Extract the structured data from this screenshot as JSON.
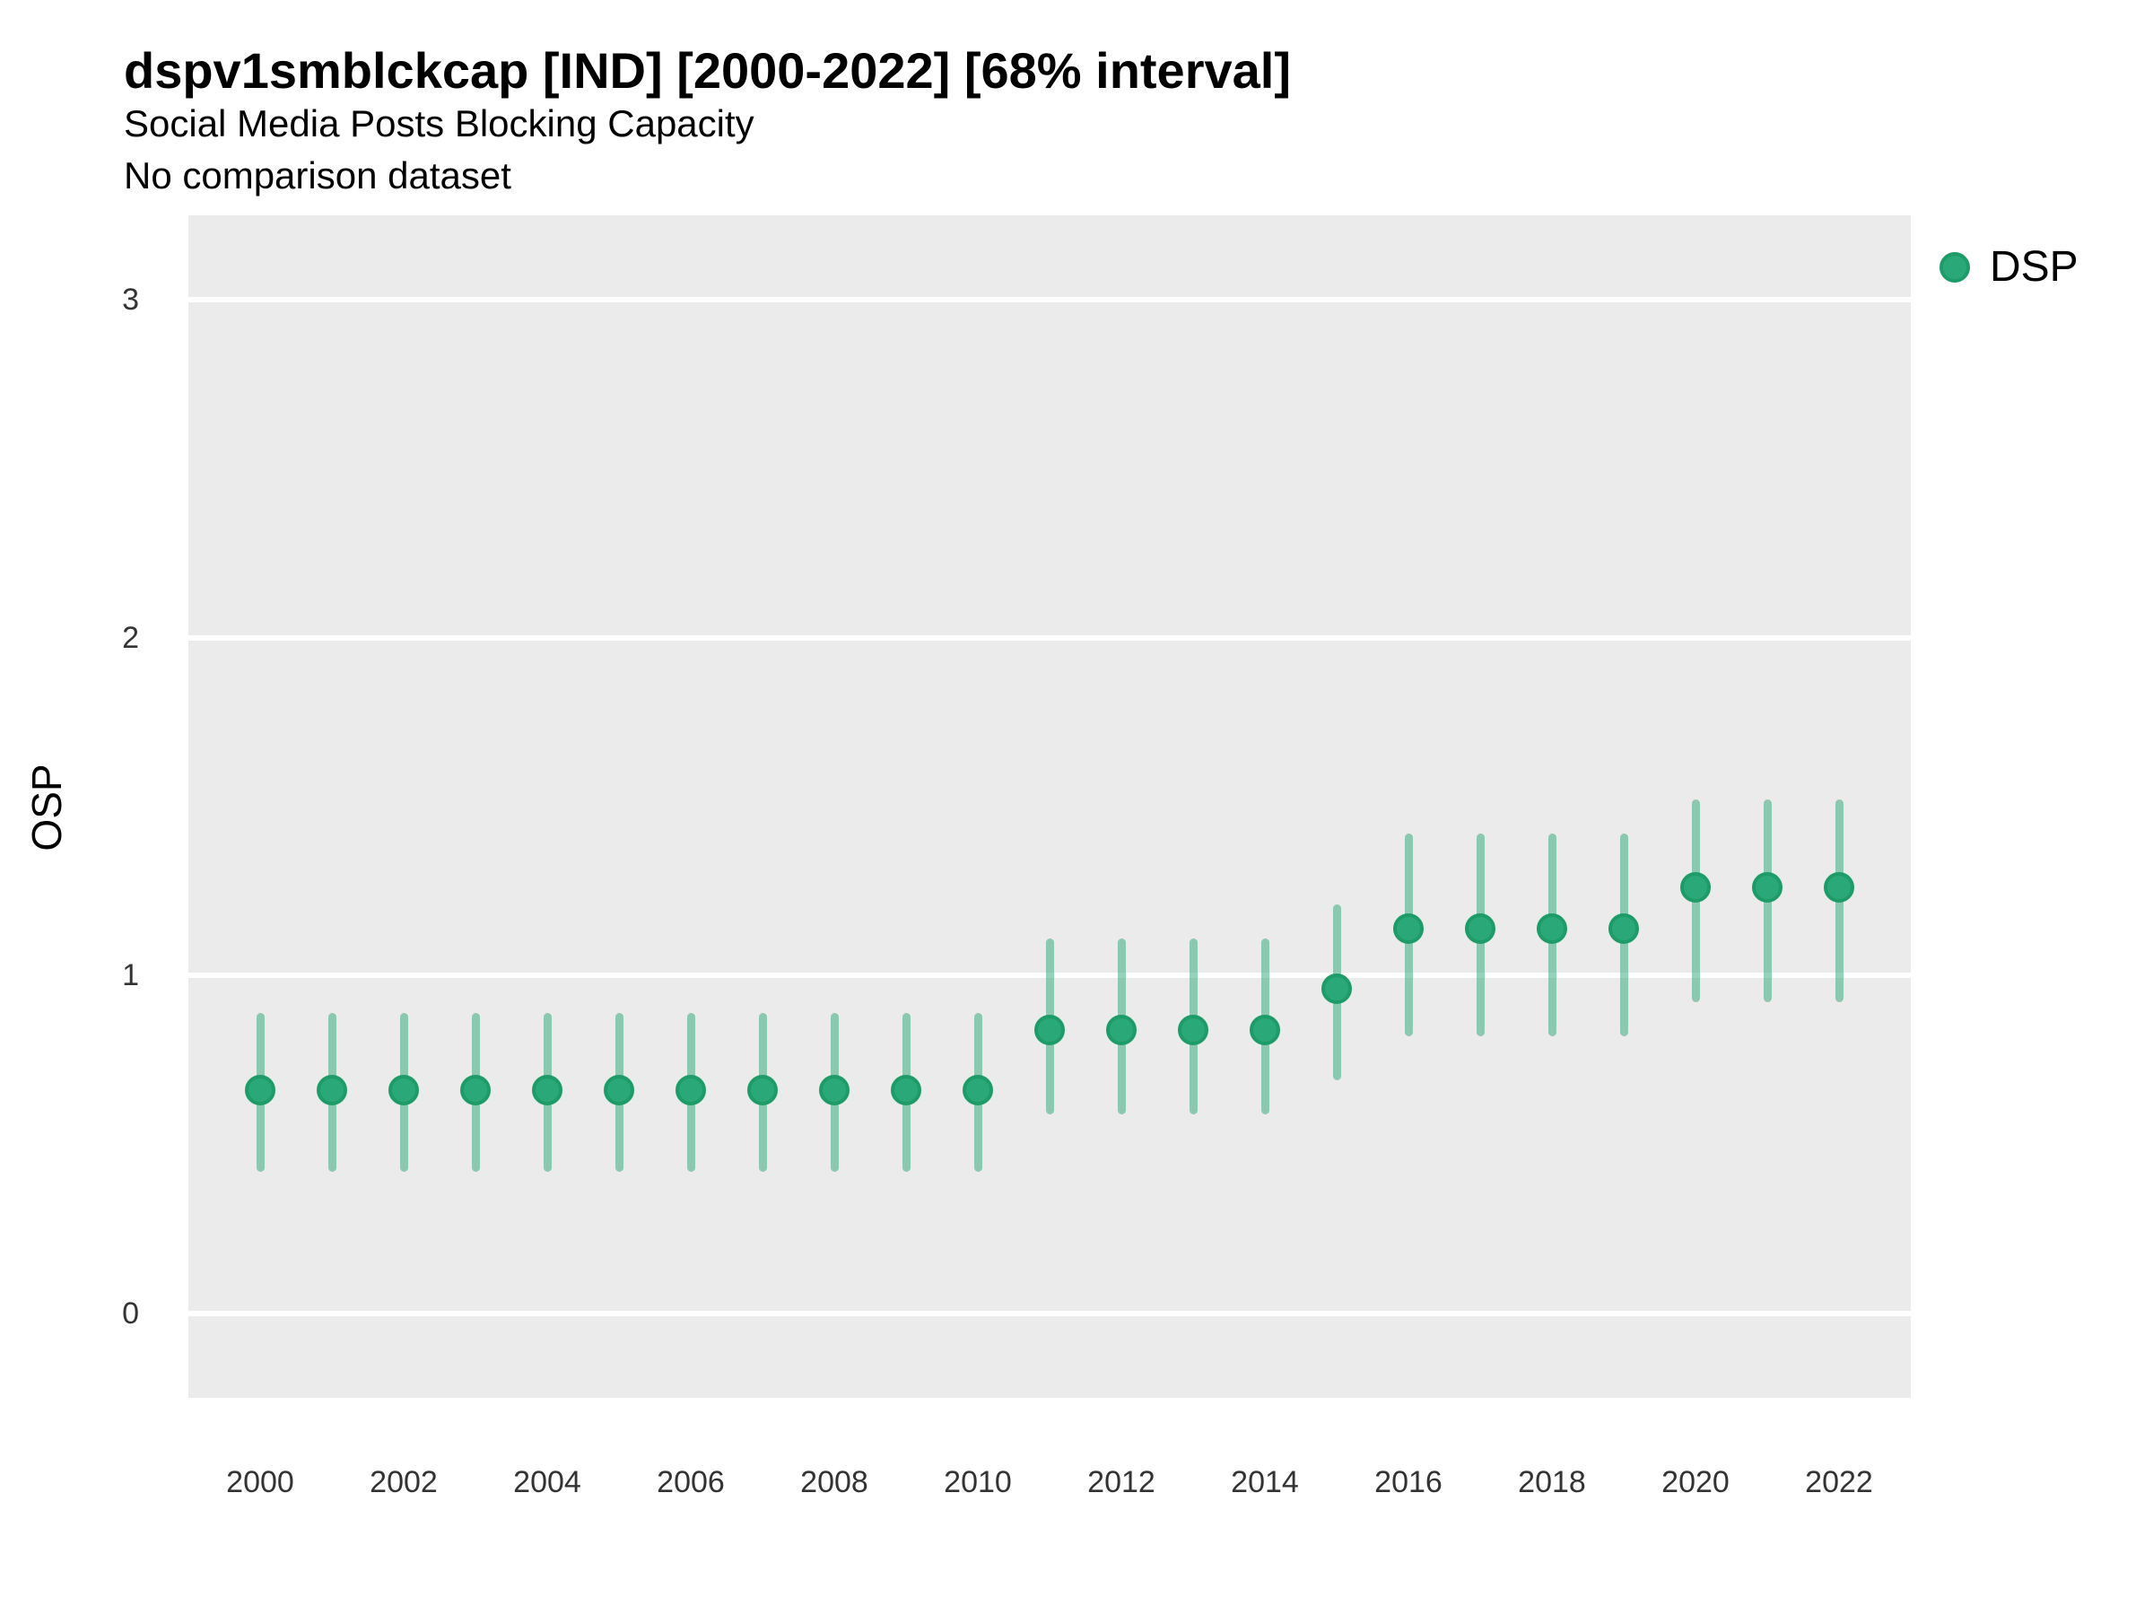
{
  "header": {
    "title": "dspv1smblckcap [IND] [2000-2022] [68% interval]",
    "subtitle": "Social Media Posts Blocking Capacity",
    "caption": "No comparison dataset"
  },
  "legend": {
    "label": "DSP"
  },
  "axes": {
    "ylabel": "OSP",
    "yticks": [
      0,
      1,
      2,
      3
    ],
    "xticks": [
      2000,
      2002,
      2004,
      2006,
      2008,
      2010,
      2012,
      2014,
      2016,
      2018,
      2020,
      2022
    ]
  },
  "colors": {
    "point_fill": "#2BA878",
    "point_border": "#1E9C68",
    "interval_bar": "rgba(42,168,118,0.5)",
    "panel_bg": "#EBEBEB",
    "gridline": "#FFFFFF",
    "tick_text": "#333333",
    "title_text": "#000000"
  },
  "chart_data": {
    "type": "scatter",
    "subtype": "pointrange",
    "title": "dspv1smblckcap [IND] [2000-2022] [68% interval]",
    "subtitle": "Social Media Posts Blocking Capacity",
    "caption": "No comparison dataset",
    "xlabel": "",
    "ylabel": "OSP",
    "interval": "68%",
    "legend_position": "right-top",
    "grid": "horizontal-major-white",
    "ylim": [
      -0.25,
      3.25
    ],
    "x": [
      2000,
      2001,
      2002,
      2003,
      2004,
      2005,
      2006,
      2007,
      2008,
      2009,
      2010,
      2011,
      2012,
      2013,
      2014,
      2015,
      2016,
      2017,
      2018,
      2019,
      2020,
      2021,
      2022
    ],
    "series": [
      {
        "name": "DSP",
        "values": [
          0.66,
          0.66,
          0.66,
          0.66,
          0.66,
          0.66,
          0.66,
          0.66,
          0.66,
          0.66,
          0.66,
          0.84,
          0.84,
          0.84,
          0.84,
          0.96,
          1.14,
          1.14,
          1.14,
          1.14,
          1.26,
          1.26,
          1.26
        ],
        "lower": [
          0.42,
          0.42,
          0.42,
          0.42,
          0.42,
          0.42,
          0.42,
          0.42,
          0.42,
          0.42,
          0.42,
          0.59,
          0.59,
          0.59,
          0.59,
          0.69,
          0.82,
          0.82,
          0.82,
          0.82,
          0.92,
          0.92,
          0.92
        ],
        "upper": [
          0.89,
          0.89,
          0.89,
          0.89,
          0.89,
          0.89,
          0.89,
          0.89,
          0.89,
          0.89,
          0.89,
          1.11,
          1.11,
          1.11,
          1.11,
          1.21,
          1.42,
          1.42,
          1.42,
          1.42,
          1.52,
          1.52,
          1.52
        ]
      }
    ]
  }
}
